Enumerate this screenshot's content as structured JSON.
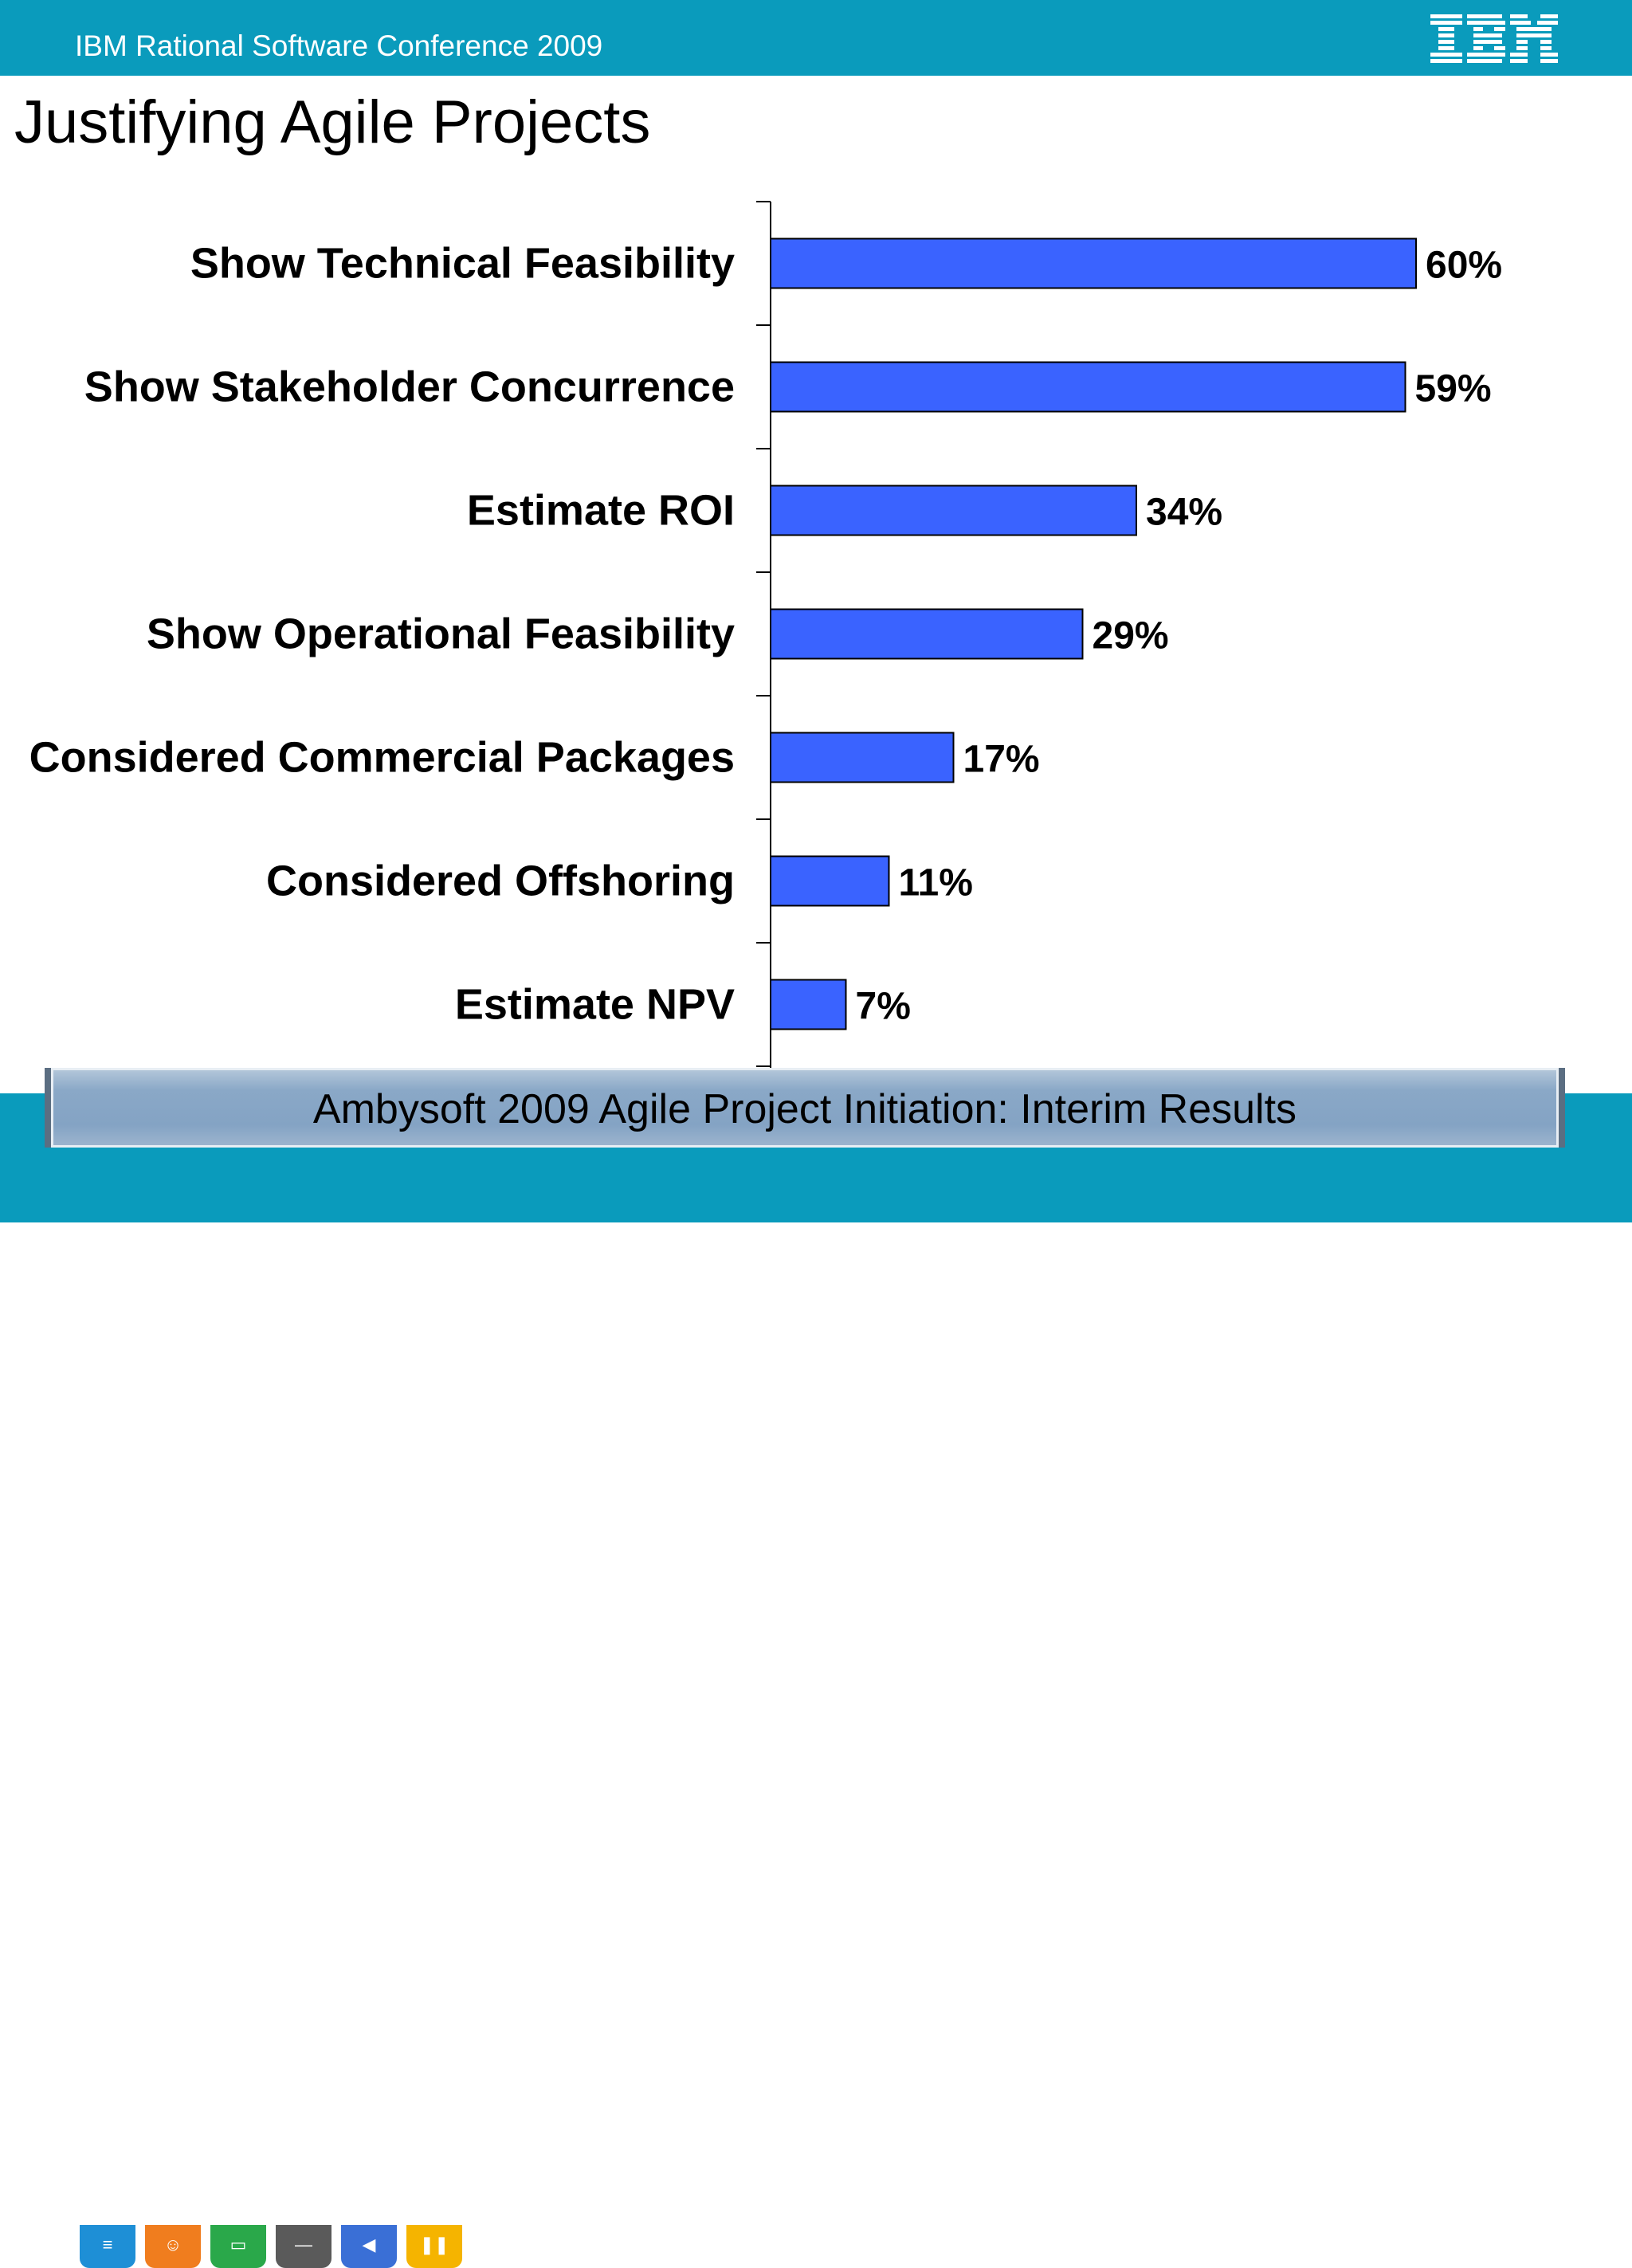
{
  "header": {
    "conference": "IBM Rational Software Conference 2009",
    "logo_text": "IBM"
  },
  "slide": {
    "title": "Justifying Agile Projects"
  },
  "footer": {
    "caption": "Ambysoft 2009 Agile Project Initiation: Interim Results"
  },
  "taskbar": {
    "icons": [
      {
        "name": "ibm-app-icon",
        "color": "#1e8fd6",
        "glyph": "≡"
      },
      {
        "name": "presenter-icon",
        "color": "#f07d1e",
        "glyph": "☺"
      },
      {
        "name": "book-icon",
        "color": "#2aa84a",
        "glyph": "▭"
      },
      {
        "name": "minimize-icon",
        "color": "#5a5a5a",
        "glyph": "—"
      },
      {
        "name": "megaphone-icon",
        "color": "#3a6fd6",
        "glyph": "◀"
      },
      {
        "name": "pause-icon",
        "color": "#f5b400",
        "glyph": "❚❚"
      }
    ]
  },
  "colors": {
    "brand_band": "#0a9bbc",
    "bar_fill": "#3a63ff",
    "bar_stroke": "#000000"
  },
  "chart_data": {
    "type": "bar",
    "orientation": "horizontal",
    "categories": [
      "Show Technical Feasibility",
      "Show Stakeholder Concurrence",
      "Estimate ROI",
      "Show Operational Feasibility",
      "Considered Commercial Packages",
      "Considered Offshoring",
      "Estimate NPV"
    ],
    "values": [
      60,
      59,
      34,
      29,
      17,
      11,
      7
    ],
    "data_labels": [
      "60%",
      "59%",
      "34%",
      "29%",
      "17%",
      "11%",
      "7%"
    ],
    "unit": "%",
    "xlim": [
      0,
      60
    ],
    "grid": false,
    "legend": "none"
  }
}
